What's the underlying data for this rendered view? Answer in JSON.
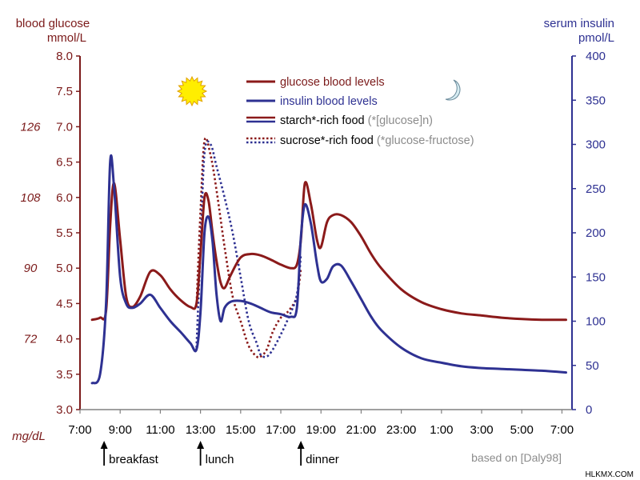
{
  "chart_data": {
    "type": "line",
    "left_axis": {
      "label_line1": "blood glucose",
      "label_line2": "mmol/L",
      "ylim": [
        3.0,
        8.0
      ],
      "ticks": [
        "3.0",
        "3.5",
        "4.0",
        "4.5",
        "5.0",
        "5.5",
        "6.0",
        "6.5",
        "7.0",
        "7.5",
        "8.0"
      ]
    },
    "right_axis": {
      "label_line1": "serum insulin",
      "label_line2": "pmol/L",
      "ylim": [
        0,
        400
      ],
      "ticks": [
        "0",
        "50",
        "100",
        "150",
        "200",
        "250",
        "300",
        "350",
        "400"
      ]
    },
    "mgdl_axis": {
      "unit_label": "mg/dL",
      "ticks": [
        {
          "label": "72",
          "glucose": 4.0
        },
        {
          "label": "90",
          "glucose": 5.0
        },
        {
          "label": "108",
          "glucose": 6.0
        },
        {
          "label": "126",
          "glucose": 7.0
        }
      ]
    },
    "x_axis": {
      "xlim": [
        7.0,
        31.5
      ],
      "ticks": [
        {
          "label": "7:00",
          "hour": 7
        },
        {
          "label": "9:00",
          "hour": 9
        },
        {
          "label": "11:00",
          "hour": 11
        },
        {
          "label": "13:00",
          "hour": 13
        },
        {
          "label": "15:00",
          "hour": 15
        },
        {
          "label": "17:00",
          "hour": 17
        },
        {
          "label": "19:00",
          "hour": 19
        },
        {
          "label": "21:00",
          "hour": 21
        },
        {
          "label": "23:00",
          "hour": 23
        },
        {
          "label": "1:00",
          "hour": 25
        },
        {
          "label": "3:00",
          "hour": 27
        },
        {
          "label": "5:00",
          "hour": 29
        },
        {
          "label": "7:00",
          "hour": 31
        }
      ]
    },
    "grid": false,
    "legend_position": "top-center",
    "legend": [
      {
        "label": "glucose blood levels",
        "note": "",
        "color": "#8b1a1a",
        "dash": false
      },
      {
        "label": "insulin blood levels",
        "note": "",
        "color": "#2e3192",
        "dash": false
      },
      {
        "label": "starch*-rich food",
        "note": "(*[glucose]n)",
        "color": "#8b1a1a",
        "color2": "#2e3192",
        "dash": false
      },
      {
        "label": "sucrose*-rich food",
        "note": "(*glucose-fructose)",
        "color": "#8b1a1a",
        "color2": "#2e3192",
        "dash": true
      }
    ],
    "meals": [
      {
        "label": "breakfast",
        "hour": 8.2
      },
      {
        "label": "lunch",
        "hour": 13.0
      },
      {
        "label": "dinner",
        "hour": 18.0
      }
    ],
    "source_note": "based on [Daly98]",
    "series": [
      {
        "name": "glucose blood levels",
        "axis": "left",
        "color": "#8b1a1a",
        "dash": false,
        "x": [
          7.6,
          8.0,
          8.3,
          8.5,
          8.7,
          9.0,
          9.3,
          9.6,
          10.0,
          10.5,
          11.0,
          11.5,
          12.0,
          12.5,
          12.8,
          13.0,
          13.2,
          13.4,
          13.6,
          13.8,
          14.0,
          14.2,
          14.5,
          15.0,
          15.5,
          16.0,
          16.5,
          17.0,
          17.5,
          17.8,
          18.0,
          18.2,
          18.5,
          18.8,
          19.0,
          19.3,
          19.6,
          20.0,
          20.5,
          21.0,
          21.5,
          22.0,
          23.0,
          24.0,
          25.0,
          26.0,
          27.0,
          28.0,
          29.0,
          30.0,
          31.2
        ],
        "values": [
          4.27,
          4.3,
          4.4,
          5.6,
          6.2,
          5.4,
          4.6,
          4.45,
          4.6,
          4.95,
          4.9,
          4.7,
          4.55,
          4.45,
          4.5,
          5.2,
          6.0,
          5.95,
          5.5,
          5.1,
          4.8,
          4.72,
          4.9,
          5.15,
          5.2,
          5.18,
          5.12,
          5.05,
          5.0,
          5.05,
          5.4,
          6.2,
          5.9,
          5.4,
          5.3,
          5.65,
          5.75,
          5.75,
          5.65,
          5.45,
          5.2,
          5.0,
          4.7,
          4.52,
          4.42,
          4.36,
          4.33,
          4.3,
          4.28,
          4.27,
          4.27
        ]
      },
      {
        "name": "insulin blood levels",
        "axis": "right",
        "color": "#2e3192",
        "dash": false,
        "x": [
          7.6,
          8.0,
          8.3,
          8.5,
          8.7,
          9.0,
          9.3,
          9.6,
          10.0,
          10.5,
          11.0,
          11.5,
          12.0,
          12.5,
          12.8,
          13.0,
          13.2,
          13.4,
          13.6,
          13.8,
          14.0,
          14.2,
          14.5,
          15.0,
          15.5,
          16.0,
          16.5,
          17.0,
          17.5,
          17.8,
          18.0,
          18.2,
          18.5,
          18.8,
          19.0,
          19.3,
          19.6,
          20.0,
          20.5,
          21.0,
          21.5,
          22.0,
          23.0,
          24.0,
          25.0,
          26.0,
          27.0,
          28.0,
          29.0,
          30.0,
          31.2
        ],
        "values": [
          30,
          40,
          120,
          280,
          250,
          150,
          120,
          115,
          120,
          130,
          115,
          100,
          88,
          75,
          68,
          110,
          200,
          218,
          190,
          130,
          100,
          115,
          122,
          123,
          120,
          115,
          110,
          108,
          105,
          115,
          195,
          232,
          210,
          165,
          145,
          148,
          162,
          163,
          145,
          125,
          105,
          90,
          70,
          58,
          53,
          49,
          47,
          46,
          45,
          44,
          42
        ]
      },
      {
        "name": "glucose blood levels",
        "axis": "left",
        "color": "#8b1a1a",
        "dash": true,
        "x": [
          12.8,
          13.0,
          13.2,
          13.5,
          13.8,
          14.2,
          14.6,
          15.0,
          15.4,
          15.8,
          16.0,
          16.3,
          16.6,
          17.0,
          17.4,
          17.8,
          18.0
        ],
        "values": [
          4.45,
          5.8,
          6.8,
          6.6,
          6.1,
          5.3,
          4.6,
          4.25,
          3.9,
          3.75,
          3.75,
          3.85,
          4.1,
          4.3,
          4.4,
          4.6,
          5.0
        ]
      },
      {
        "name": "insulin blood levels",
        "axis": "right",
        "color": "#2e3192",
        "dash": true,
        "x": [
          12.8,
          13.0,
          13.2,
          13.5,
          13.8,
          14.2,
          14.6,
          15.0,
          15.4,
          15.8,
          16.0,
          16.3,
          16.6,
          17.0,
          17.4,
          17.8,
          18.0
        ],
        "values": [
          70,
          180,
          290,
          300,
          275,
          240,
          200,
          150,
          100,
          75,
          62,
          60,
          68,
          85,
          105,
          130,
          175
        ]
      }
    ]
  },
  "decorations": {
    "sun_icon": "sun-icon",
    "moon_icon": "moon-icon",
    "sun_color": "#ffee00",
    "moon_color": "#d6ecf2"
  },
  "watermark": "HLKMX.COM"
}
